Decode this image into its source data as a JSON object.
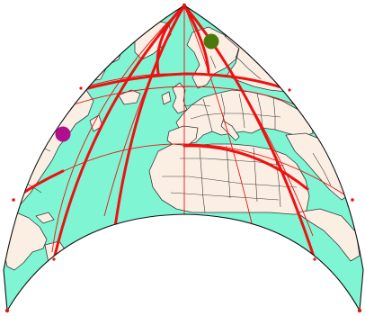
{
  "map": {
    "colors": {
      "ocean": "#7ff5d4",
      "land": "#fbefe4",
      "border": "#3a3a3a",
      "graticule": "#ee1111",
      "outline": "#111111",
      "marker_magenta": "#b0108e",
      "marker_green": "#4c7a0a"
    },
    "markers": [
      {
        "name": "green-marker",
        "color_key": "marker_green"
      },
      {
        "name": "magenta-marker",
        "color_key": "marker_magenta"
      }
    ]
  }
}
